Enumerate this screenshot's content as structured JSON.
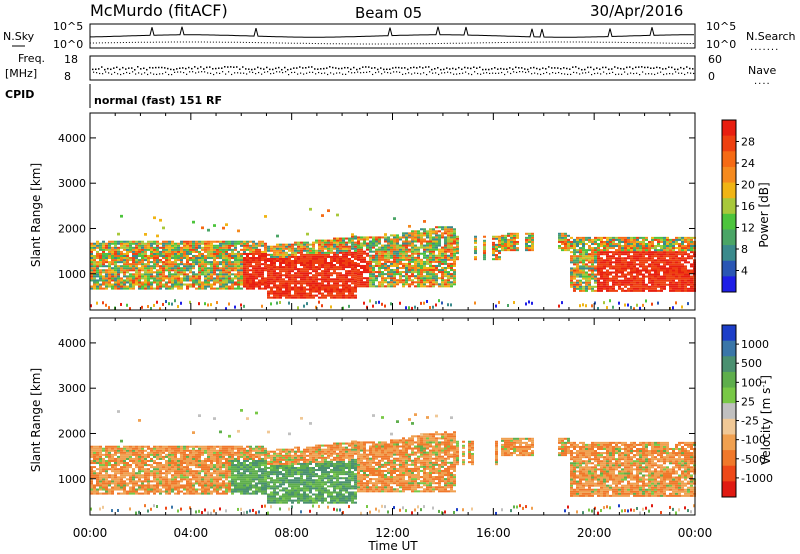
{
  "header": {
    "station": "McMurdo (fitACF)",
    "beam": "Beam 05",
    "date": "30/Apr/2016"
  },
  "top_panels": {
    "nsky_label": "N.Sky",
    "nsearch_label": "N.Search",
    "nsky_ticks": [
      "10^5",
      "10^0"
    ],
    "nsearch_ticks": [
      "10^5",
      "10^0"
    ],
    "freq_label_1": "Freq.",
    "freq_label_2": "[MHz]",
    "freq_ticks": [
      "18",
      "8"
    ],
    "nave_label": "Nave",
    "nave_ticks": [
      "60",
      "0"
    ],
    "cpid_label": "CPID",
    "cpid_value": "normal (fast) 151 RF"
  },
  "chart_data": [
    {
      "type": "heatmap",
      "name": "power",
      "ylabel": "Slant Range [km]",
      "xlabel": "",
      "xticks": [
        "00:00",
        "04:00",
        "08:00",
        "12:00",
        "16:00",
        "20:00",
        "00:00"
      ],
      "yticks": [
        "1000",
        "2000",
        "3000",
        "4000"
      ],
      "ylim": [
        200,
        4550
      ],
      "xlim_hours": [
        0,
        24
      ],
      "colorbar": {
        "label": "Power [dB]",
        "ticks": [
          "4",
          "8",
          "12",
          "16",
          "20",
          "24",
          "28"
        ],
        "range": [
          0,
          32
        ]
      }
    },
    {
      "type": "heatmap",
      "name": "velocity",
      "ylabel": "Slant Range [km]",
      "xlabel": "Time UT",
      "xticks": [
        "00:00",
        "04:00",
        "08:00",
        "12:00",
        "16:00",
        "20:00",
        "00:00"
      ],
      "yticks": [
        "1000",
        "2000",
        "3000",
        "4000"
      ],
      "ylim": [
        200,
        4550
      ],
      "xlim_hours": [
        0,
        24
      ],
      "colorbar": {
        "label": "Velocity [m s",
        "label_sup": "-1",
        "label_end": "]",
        "ticks": [
          "1000",
          "500",
          "100",
          "25",
          "-25",
          "-100",
          "-500",
          "-1000"
        ]
      }
    }
  ],
  "colors": {
    "power": [
      "#1e1ee6",
      "#2a56b4",
      "#3a8a8c",
      "#4aa566",
      "#4cc43c",
      "#a8c83a",
      "#f0b414",
      "#f58a1e",
      "#f56a14",
      "#ee4010",
      "#e81e10"
    ],
    "velocity": [
      "#1c3ec8",
      "#3a76a8",
      "#4a9070",
      "#5eae4c",
      "#78c846",
      "#c0c0c0",
      "#f0c896",
      "#f0a050",
      "#f0782a",
      "#ee4818",
      "#e01a12"
    ]
  }
}
